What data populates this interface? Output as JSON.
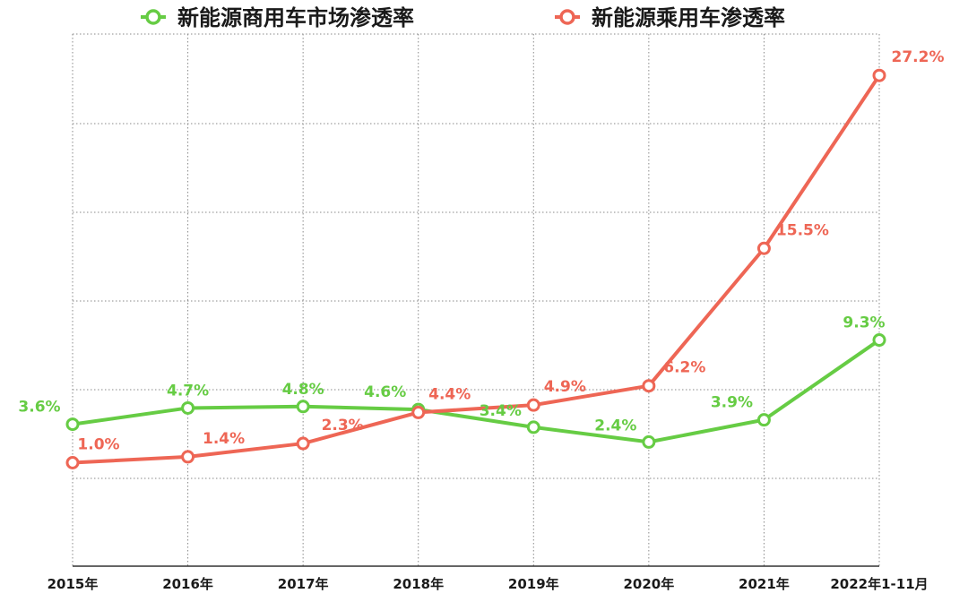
{
  "chart_data": {
    "type": "line",
    "title": "",
    "xlabel": "",
    "ylabel": "",
    "categories": [
      "2015年",
      "2016年",
      "2017年",
      "2018年",
      "2019年",
      "2020年",
      "2021年",
      "2022年1-11月"
    ],
    "ylim": [
      -6,
      30
    ],
    "grid": true,
    "legend": "top-center",
    "series": [
      {
        "name": "新能源商用车市场渗透率",
        "color": "#66cc44",
        "values": [
          3.6,
          4.7,
          4.8,
          4.6,
          3.4,
          2.4,
          3.9,
          9.3
        ],
        "labels": [
          "3.6%",
          "4.7%",
          "4.8%",
          "4.6%",
          "3.4%",
          "2.4%",
          "3.9%",
          "9.3%"
        ]
      },
      {
        "name": "新能源乘用车渗透率",
        "color": "#ee6655",
        "values": [
          1.0,
          1.4,
          2.3,
          4.4,
          4.9,
          6.2,
          15.5,
          27.2
        ],
        "labels": [
          "1.0%",
          "1.4%",
          "2.3%",
          "4.4%",
          "4.9%",
          "6.2%",
          "15.5%",
          "27.2%"
        ]
      }
    ]
  }
}
